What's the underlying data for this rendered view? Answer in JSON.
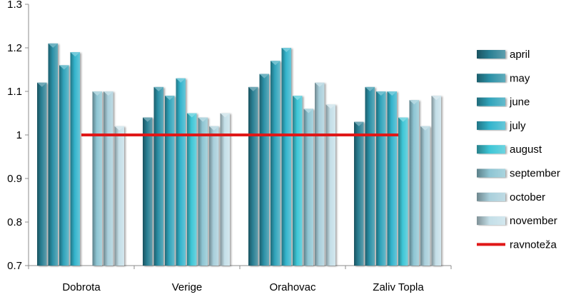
{
  "chart_data": {
    "type": "bar",
    "title": "",
    "xlabel": "",
    "ylabel": "",
    "categories": [
      "Dobrota",
      "Verige",
      "Orahovac",
      "Zaliv Topla"
    ],
    "ylim": [
      0.7,
      1.3
    ],
    "yticks": [
      "0.7",
      "0.8",
      "0.9",
      "1",
      "1.1",
      "1.2",
      "1.3"
    ],
    "grid": false,
    "legend_position": "right",
    "series": [
      {
        "name": "april",
        "color": "#2a7f93",
        "values": [
          1.12,
          1.04,
          1.11,
          1.03
        ]
      },
      {
        "name": "may",
        "color": "#2b90a6",
        "values": [
          1.21,
          1.11,
          1.14,
          1.11
        ]
      },
      {
        "name": "june",
        "color": "#31a4bb",
        "values": [
          1.16,
          1.09,
          1.17,
          1.1
        ]
      },
      {
        "name": "july",
        "color": "#33b4cc",
        "values": [
          1.19,
          1.13,
          1.2,
          1.1
        ]
      },
      {
        "name": "august",
        "color": "#3ec6d6",
        "values": [
          null,
          1.05,
          1.09,
          1.04
        ]
      },
      {
        "name": "september",
        "color": "#8ec5d3",
        "values": [
          1.1,
          1.04,
          1.06,
          1.08
        ]
      },
      {
        "name": "october",
        "color": "#a9cfdb",
        "values": [
          1.1,
          1.02,
          1.12,
          1.02
        ]
      },
      {
        "name": "november",
        "color": "#c4dfe8",
        "values": [
          1.02,
          1.05,
          1.07,
          1.09
        ]
      }
    ],
    "reference_line": {
      "name": "ravnoteža",
      "value": 1.0,
      "color": "#e01818",
      "x_start_category": "Dobrota",
      "x_end_category": "Zaliv Topla"
    }
  }
}
